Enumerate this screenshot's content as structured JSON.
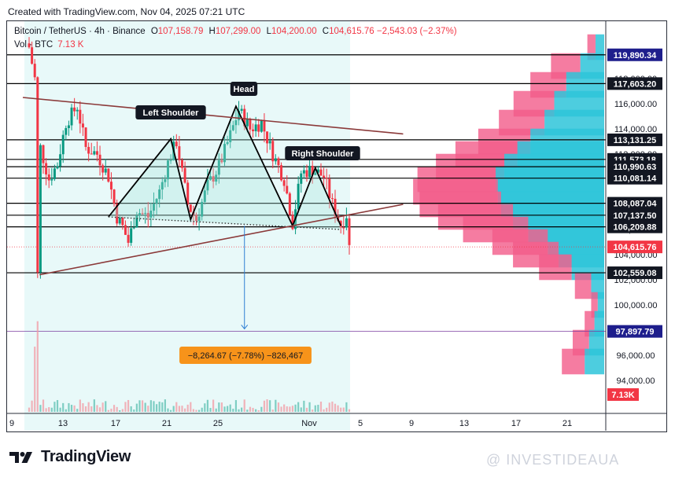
{
  "header": {
    "created": "Created with TradingView.com, Nov 04, 2025 07:21 UTC"
  },
  "legend": {
    "symbol": "Bitcoin / TetherUS · 4h · Binance",
    "o_label": "O",
    "open": "107,158.79",
    "h_label": "H",
    "high": "107,299.00",
    "l_label": "L",
    "low": "104,200.00",
    "c_label": "C",
    "close": "104,615.76",
    "change": "−2,543.03 (−2.37%)",
    "vol_label": "Vol · BTC",
    "vol_value": "7.13 K"
  },
  "footer": {
    "brand": "TradingView",
    "watermark": "@ INVESTIDEAUA"
  },
  "colors": {
    "up": "#089981",
    "down": "#f23645",
    "trendline": "#8b3a3a",
    "highlight": "#e0f7f7",
    "pattern_fill": "#a8e6dd",
    "measure": "#f7931a",
    "price_tag": "#131722",
    "last_price_tag": "#f23645",
    "target_tag": "#1e1e8c"
  },
  "chart_data": {
    "type": "candlestick",
    "symbol": "BTCUSDT",
    "timeframe": "4h",
    "x_ticks": [
      "9",
      "13",
      "17",
      "21",
      "25",
      "Nov",
      "5",
      "9",
      "13",
      "17",
      "21"
    ],
    "ylim": [
      93000,
      121500
    ],
    "y_ticks": [
      94000,
      96000,
      98000,
      100000,
      102000,
      104000,
      106000,
      108000,
      110000,
      112000,
      114000,
      116000,
      118000,
      120000
    ],
    "y_tick_labels": [
      "94,000.00",
      "96,000.00",
      "98,000.00",
      "100,000.00",
      "102,000.00",
      "104,000.00",
      "106,000.00",
      "108,000.00",
      "110,000.00",
      "112,000.00",
      "114,000.00",
      "116,000.00",
      "118,000.00",
      "120,000.00"
    ],
    "price_levels": [
      {
        "value": 119890.34,
        "label": "119,890.34"
      },
      {
        "value": 117603.2,
        "label": "117,603.20"
      },
      {
        "value": 113131.25,
        "label": "113,131.25"
      },
      {
        "value": 111573.18,
        "label": "111,573.18"
      },
      {
        "value": 110990.63,
        "label": "110,990.63"
      },
      {
        "value": 110081.14,
        "label": "110,081.14"
      },
      {
        "value": 108087.04,
        "label": "108,087.04"
      },
      {
        "value": 107137.5,
        "label": "107,137.50"
      },
      {
        "value": 106209.88,
        "label": "106,209.88"
      },
      {
        "value": 102559.08,
        "label": "102,559.08"
      }
    ],
    "last_price": {
      "value": 104615.76,
      "label": "104,615.76"
    },
    "target_level": {
      "value": 97897.79,
      "label": "97,897.79"
    },
    "volume_label": "7.13K",
    "annotations": {
      "left_shoulder": "Left Shoulder",
      "head": "Head",
      "right_shoulder": "Right Shoulder",
      "measure": "−8,264.67 (−7.78%) −826,467"
    },
    "pattern_points": [
      {
        "i": 28,
        "v": 107000
      },
      {
        "i": 50,
        "v": 113200
      },
      {
        "i": 57,
        "v": 106800
      },
      {
        "i": 73,
        "v": 115800
      },
      {
        "i": 93,
        "v": 106300
      },
      {
        "i": 101,
        "v": 110900
      },
      {
        "i": 110,
        "v": 106300
      }
    ],
    "neckline": [
      {
        "i": 28,
        "v": 107000
      },
      {
        "i": 110,
        "v": 106000
      }
    ],
    "upper_trend": [
      {
        "i": 0,
        "v": 116500
      },
      {
        "i": 132,
        "v": 113600
      }
    ],
    "lower_trend": [
      {
        "i": 2,
        "v": 102400
      },
      {
        "i": 132,
        "v": 108000
      }
    ],
    "measure_line": {
      "i": 76,
      "from": 106300,
      "to": 98100
    },
    "key_points": [
      {
        "i": 0,
        "v": 120500
      },
      {
        "i": 2,
        "v": 118000
      },
      {
        "i": 3,
        "v": 102400
      },
      {
        "i": 4,
        "v": 112500
      },
      {
        "i": 7,
        "v": 110000
      },
      {
        "i": 10,
        "v": 111200
      },
      {
        "i": 13,
        "v": 114500
      },
      {
        "i": 17,
        "v": 115800
      },
      {
        "i": 20,
        "v": 112500
      },
      {
        "i": 24,
        "v": 112000
      },
      {
        "i": 28,
        "v": 110200
      },
      {
        "i": 31,
        "v": 107000
      },
      {
        "i": 33,
        "v": 106200
      },
      {
        "i": 35,
        "v": 105000
      },
      {
        "i": 38,
        "v": 107500
      },
      {
        "i": 42,
        "v": 107000
      },
      {
        "i": 46,
        "v": 109000
      },
      {
        "i": 49,
        "v": 111300
      },
      {
        "i": 52,
        "v": 113000
      },
      {
        "i": 56,
        "v": 108000
      },
      {
        "i": 59,
        "v": 106800
      },
      {
        "i": 63,
        "v": 109500
      },
      {
        "i": 67,
        "v": 111000
      },
      {
        "i": 71,
        "v": 113500
      },
      {
        "i": 74,
        "v": 115500
      },
      {
        "i": 78,
        "v": 114000
      },
      {
        "i": 82,
        "v": 114500
      },
      {
        "i": 86,
        "v": 112000
      },
      {
        "i": 90,
        "v": 110000
      },
      {
        "i": 93,
        "v": 106500
      },
      {
        "i": 96,
        "v": 110500
      },
      {
        "i": 100,
        "v": 110800
      },
      {
        "i": 104,
        "v": 110200
      },
      {
        "i": 107,
        "v": 108000
      },
      {
        "i": 110,
        "v": 106300
      },
      {
        "i": 112,
        "v": 107200
      },
      {
        "i": 113,
        "v": 104600
      }
    ],
    "volume_profile": [
      {
        "price": 120500,
        "up": 8,
        "down": 5
      },
      {
        "price": 119000,
        "up": 22,
        "down": 18
      },
      {
        "price": 117500,
        "up": 35,
        "down": 22
      },
      {
        "price": 116000,
        "up": 46,
        "down": 25
      },
      {
        "price": 114500,
        "up": 55,
        "down": 28
      },
      {
        "price": 113000,
        "up": 68,
        "down": 32
      },
      {
        "price": 112000,
        "up": 80,
        "down": 38
      },
      {
        "price": 111000,
        "up": 92,
        "down": 42
      },
      {
        "price": 110000,
        "up": 100,
        "down": 48
      },
      {
        "price": 109000,
        "up": 98,
        "down": 52
      },
      {
        "price": 108000,
        "up": 95,
        "down": 50
      },
      {
        "price": 107000,
        "up": 84,
        "down": 46
      },
      {
        "price": 106000,
        "up": 70,
        "down": 40
      },
      {
        "price": 105000,
        "up": 52,
        "down": 34
      },
      {
        "price": 104000,
        "up": 42,
        "down": 28
      },
      {
        "price": 103000,
        "up": 30,
        "down": 20
      },
      {
        "price": 101500,
        "up": 12,
        "down": 10
      },
      {
        "price": 100000,
        "up": 6,
        "down": 4
      },
      {
        "price": 98500,
        "up": 9,
        "down": 6
      },
      {
        "price": 97000,
        "up": 14,
        "down": 10
      },
      {
        "price": 95500,
        "up": 18,
        "down": 14
      }
    ]
  }
}
